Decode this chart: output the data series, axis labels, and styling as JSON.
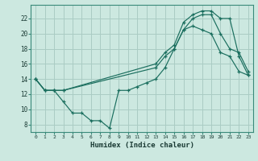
{
  "xlabel": "Humidex (Indice chaleur)",
  "bg_color": "#cce8e0",
  "grid_color": "#aaccc4",
  "line_color": "#1a6e5e",
  "x_ticks": [
    0,
    1,
    2,
    3,
    4,
    5,
    6,
    7,
    8,
    9,
    10,
    11,
    12,
    13,
    14,
    15,
    16,
    17,
    18,
    19,
    20,
    21,
    22,
    23
  ],
  "y_ticks": [
    8,
    10,
    12,
    14,
    16,
    18,
    20,
    22
  ],
  "ylim": [
    7.0,
    23.8
  ],
  "xlim": [
    -0.5,
    23.5
  ],
  "line1_x": [
    0,
    1,
    2,
    3,
    4,
    5,
    6,
    7,
    8,
    9,
    10,
    11,
    12,
    13,
    14,
    15,
    16,
    17,
    18,
    19,
    20,
    21,
    22,
    23
  ],
  "line1_y": [
    14,
    12.5,
    12.5,
    11,
    9.5,
    9.5,
    8.5,
    8.5,
    7.5,
    12.5,
    12.5,
    13,
    13.5,
    14,
    15.5,
    18,
    20.5,
    21,
    20.5,
    20,
    17.5,
    17,
    15,
    14.5
  ],
  "line2_x": [
    0,
    1,
    2,
    3,
    13,
    14,
    15,
    16,
    17,
    18,
    19,
    20,
    21,
    22,
    23
  ],
  "line2_y": [
    14,
    12.5,
    12.5,
    12.5,
    15.5,
    17,
    18,
    20.5,
    22,
    22.5,
    22.5,
    20,
    18,
    17.5,
    15
  ],
  "line3_x": [
    0,
    1,
    2,
    3,
    13,
    14,
    15,
    16,
    17,
    18,
    19,
    20,
    21,
    22,
    23
  ],
  "line3_y": [
    14,
    12.5,
    12.5,
    12.5,
    16,
    17.5,
    18.5,
    21.5,
    22.5,
    23,
    23,
    22,
    22,
    17,
    14.5
  ]
}
